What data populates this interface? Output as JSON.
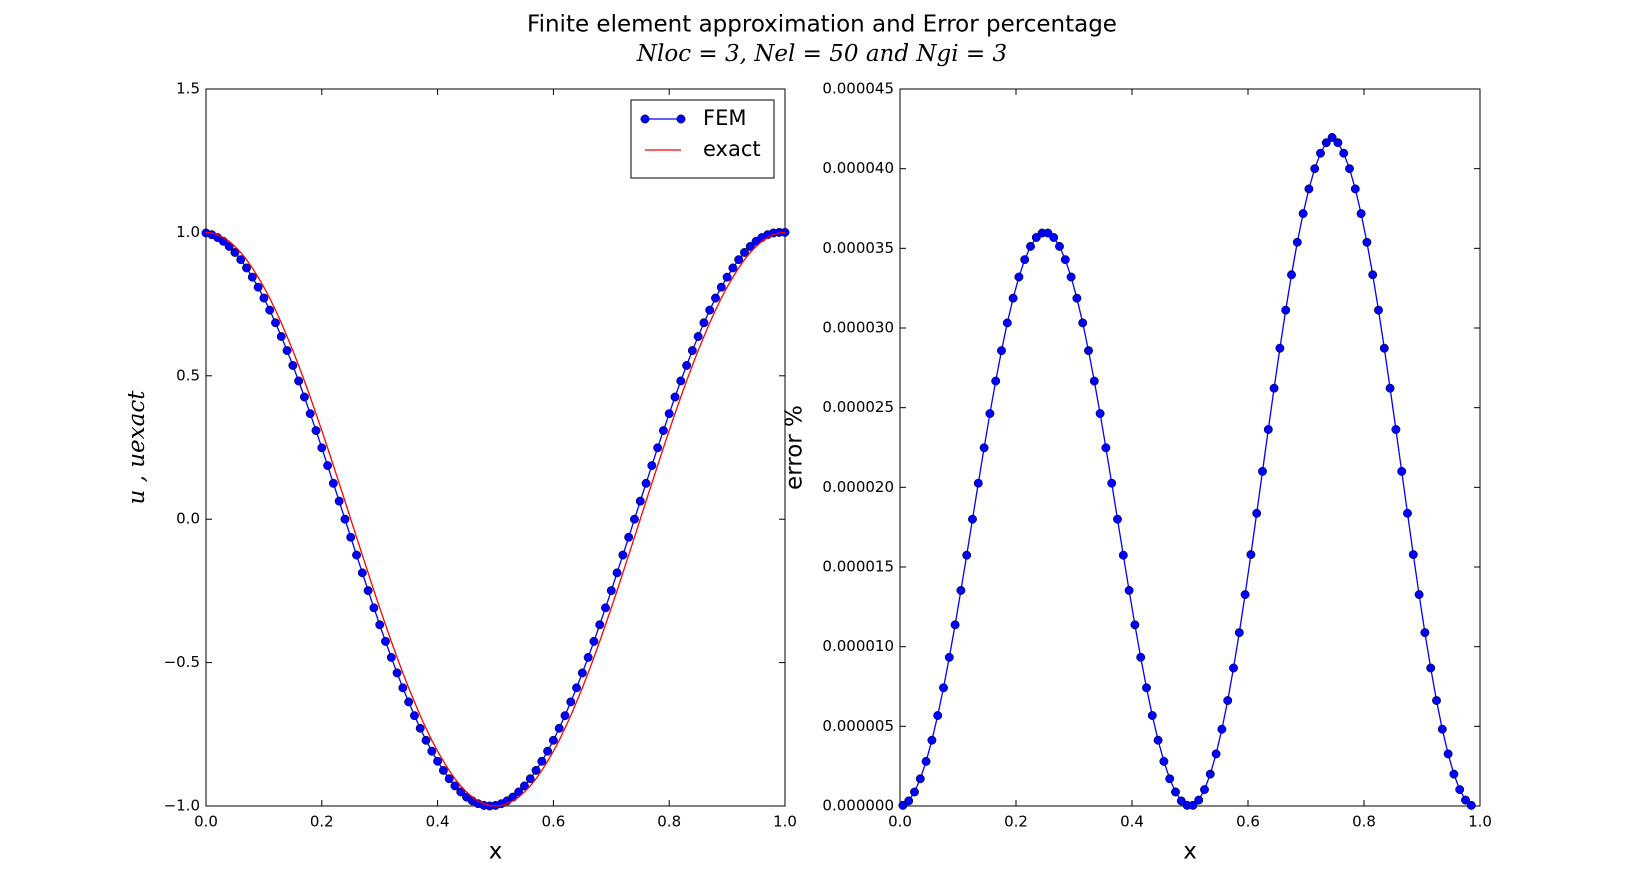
{
  "title": "Finite element approximation and Error percentage",
  "subtitle": "Nloc = 3,  Nel = 50  and Ngi = 3",
  "chart_data": [
    {
      "type": "line",
      "xlabel": "x",
      "ylabel": "u , uexact",
      "legend": "upper right",
      "xlim": [
        0,
        1
      ],
      "ylim": [
        -1,
        1.5
      ],
      "xticks": [
        {
          "value": 0,
          "label": "0.0"
        },
        {
          "value": 0.2,
          "label": "0.2"
        },
        {
          "value": 0.4,
          "label": "0.4"
        },
        {
          "value": 0.6,
          "label": "0.6"
        },
        {
          "value": 0.8,
          "label": "0.8"
        },
        {
          "value": 1,
          "label": "1.0"
        }
      ],
      "yticks": [
        {
          "value": -1,
          "label": "−1.0"
        },
        {
          "value": -0.5,
          "label": "−0.5"
        },
        {
          "value": 0,
          "label": "0.0"
        },
        {
          "value": 0.5,
          "label": "0.5"
        },
        {
          "value": 1,
          "label": "1.0"
        },
        {
          "value": 1.5,
          "label": "1.5"
        }
      ],
      "x": [
        0,
        0.01,
        0.02,
        0.03,
        0.04,
        0.05,
        0.06,
        0.07,
        0.08,
        0.09,
        0.1,
        0.11,
        0.12,
        0.13,
        0.14,
        0.15,
        0.16,
        0.17,
        0.18,
        0.19,
        0.2,
        0.21,
        0.22,
        0.23,
        0.24,
        0.25,
        0.26,
        0.27,
        0.28,
        0.29,
        0.3,
        0.31,
        0.32,
        0.33,
        0.34,
        0.35,
        0.36,
        0.37,
        0.38,
        0.39,
        0.4,
        0.41,
        0.42,
        0.43,
        0.44,
        0.45,
        0.46,
        0.47,
        0.48,
        0.49,
        0.5,
        0.51,
        0.52,
        0.53,
        0.54,
        0.55,
        0.56,
        0.57,
        0.58,
        0.59,
        0.6,
        0.61,
        0.62,
        0.63,
        0.64,
        0.65,
        0.66,
        0.67,
        0.68,
        0.69,
        0.7,
        0.71,
        0.72,
        0.73,
        0.74,
        0.75,
        0.76,
        0.77,
        0.78,
        0.79,
        0.8,
        0.81,
        0.82,
        0.83,
        0.84,
        0.85,
        0.86,
        0.87,
        0.88,
        0.89,
        0.9,
        0.91,
        0.92,
        0.93,
        0.94,
        0.95,
        0.96,
        0.97,
        0.98,
        0.99,
        1
      ],
      "series": [
        {
          "name": "FEM",
          "color": "#0000ff",
          "marker": true,
          "values": [
            0.998,
            0.992,
            0.982,
            0.969,
            0.951,
            0.93,
            0.905,
            0.876,
            0.844,
            0.809,
            0.771,
            0.729,
            0.685,
            0.637,
            0.588,
            0.536,
            0.482,
            0.426,
            0.368,
            0.309,
            0.249,
            0.187,
            0.125,
            0.063,
            0,
            -0.063,
            -0.125,
            -0.187,
            -0.249,
            -0.309,
            -0.368,
            -0.426,
            -0.482,
            -0.536,
            -0.588,
            -0.637,
            -0.685,
            -0.729,
            -0.771,
            -0.809,
            -0.844,
            -0.876,
            -0.905,
            -0.93,
            -0.951,
            -0.969,
            -0.982,
            -0.992,
            -0.998,
            -1,
            -0.998,
            -0.992,
            -0.982,
            -0.969,
            -0.951,
            -0.93,
            -0.905,
            -0.876,
            -0.844,
            -0.809,
            -0.771,
            -0.729,
            -0.685,
            -0.637,
            -0.588,
            -0.536,
            -0.482,
            -0.426,
            -0.368,
            -0.309,
            -0.249,
            -0.187,
            -0.125,
            -0.063,
            0,
            0.063,
            0.125,
            0.187,
            0.249,
            0.309,
            0.368,
            0.426,
            0.482,
            0.536,
            0.588,
            0.637,
            0.685,
            0.729,
            0.771,
            0.809,
            0.844,
            0.876,
            0.905,
            0.93,
            0.951,
            0.969,
            0.982,
            0.992,
            0.998,
            1,
            1
          ]
        },
        {
          "name": "exact",
          "color": "#ff0000",
          "marker": false,
          "values": [
            1,
            0.998,
            0.992,
            0.982,
            0.969,
            0.951,
            0.93,
            0.905,
            0.876,
            0.844,
            0.809,
            0.771,
            0.729,
            0.685,
            0.637,
            0.588,
            0.536,
            0.482,
            0.426,
            0.368,
            0.309,
            0.249,
            0.187,
            0.125,
            0.063,
            0,
            -0.063,
            -0.125,
            -0.187,
            -0.249,
            -0.309,
            -0.368,
            -0.426,
            -0.482,
            -0.536,
            -0.588,
            -0.637,
            -0.685,
            -0.729,
            -0.771,
            -0.809,
            -0.844,
            -0.876,
            -0.905,
            -0.93,
            -0.951,
            -0.969,
            -0.982,
            -0.992,
            -0.998,
            -1,
            -0.998,
            -0.992,
            -0.982,
            -0.969,
            -0.951,
            -0.93,
            -0.905,
            -0.876,
            -0.844,
            -0.809,
            -0.771,
            -0.729,
            -0.685,
            -0.637,
            -0.588,
            -0.536,
            -0.482,
            -0.426,
            -0.368,
            -0.309,
            -0.249,
            -0.187,
            -0.125,
            -0.063,
            0,
            0.063,
            0.125,
            0.187,
            0.249,
            0.309,
            0.368,
            0.426,
            0.482,
            0.536,
            0.588,
            0.637,
            0.685,
            0.729,
            0.771,
            0.809,
            0.844,
            0.876,
            0.905,
            0.93,
            0.951,
            0.969,
            0.982,
            0.992,
            0.998,
            1
          ]
        }
      ]
    },
    {
      "type": "line",
      "xlabel": "x",
      "ylabel": "error %",
      "xlim": [
        0,
        1
      ],
      "ylim": [
        0,
        4.5e-05
      ],
      "xticks": [
        {
          "value": 0,
          "label": "0.0"
        },
        {
          "value": 0.2,
          "label": "0.2"
        },
        {
          "value": 0.4,
          "label": "0.4"
        },
        {
          "value": 0.6,
          "label": "0.6"
        },
        {
          "value": 0.8,
          "label": "0.8"
        },
        {
          "value": 1,
          "label": "1.0"
        }
      ],
      "yticks": [
        {
          "value": 0,
          "label": "0.000000"
        },
        {
          "value": 5e-06,
          "label": "0.000005"
        },
        {
          "value": 1e-05,
          "label": "0.000010"
        },
        {
          "value": 1.5e-05,
          "label": "0.000015"
        },
        {
          "value": 2e-05,
          "label": "0.000020"
        },
        {
          "value": 2.5e-05,
          "label": "0.000025"
        },
        {
          "value": 3e-05,
          "label": "0.000030"
        },
        {
          "value": 3.5e-05,
          "label": "0.000035"
        },
        {
          "value": 4e-05,
          "label": "0.000040"
        },
        {
          "value": 4.5e-05,
          "label": "0.000045"
        }
      ],
      "x": [
        0.005,
        0.015,
        0.025,
        0.035,
        0.045,
        0.055,
        0.065,
        0.075,
        0.085,
        0.095,
        0.105,
        0.115,
        0.125,
        0.135,
        0.145,
        0.155,
        0.165,
        0.175,
        0.185,
        0.195,
        0.205,
        0.215,
        0.225,
        0.235,
        0.245,
        0.255,
        0.265,
        0.275,
        0.285,
        0.295,
        0.305,
        0.315,
        0.325,
        0.335,
        0.345,
        0.355,
        0.365,
        0.375,
        0.385,
        0.395,
        0.405,
        0.415,
        0.425,
        0.435,
        0.445,
        0.455,
        0.465,
        0.475,
        0.485,
        0.495,
        0.505,
        0.515,
        0.525,
        0.535,
        0.545,
        0.555,
        0.565,
        0.575,
        0.585,
        0.595,
        0.605,
        0.615,
        0.625,
        0.635,
        0.645,
        0.655,
        0.665,
        0.675,
        0.685,
        0.695,
        0.705,
        0.715,
        0.725,
        0.735,
        0.745,
        0.755,
        0.765,
        0.775,
        0.785,
        0.795,
        0.805,
        0.815,
        0.825,
        0.835,
        0.845,
        0.855,
        0.865,
        0.875,
        0.885,
        0.895,
        0.905,
        0.915,
        0.925,
        0.935,
        0.945,
        0.955,
        0.965,
        0.975,
        0.985
      ],
      "series": [
        {
          "color": "#0000ff",
          "marker": true,
          "values": [
            4e-08,
            3.2e-07,
            8.8e-07,
            1.71e-06,
            2.8e-06,
            4.13e-06,
            5.68e-06,
            7.42e-06,
            9.33e-06,
            1.137e-05,
            1.353e-05,
            1.574e-05,
            1.8e-05,
            2.026e-05,
            2.248e-05,
            2.463e-05,
            2.667e-05,
            2.858e-05,
            3.032e-05,
            3.187e-05,
            3.32e-05,
            3.429e-05,
            3.512e-05,
            3.568e-05,
            3.596e-05,
            3.596e-05,
            3.568e-05,
            3.512e-05,
            3.429e-05,
            3.32e-05,
            3.187e-05,
            3.032e-05,
            2.858e-05,
            2.667e-05,
            2.463e-05,
            2.248e-05,
            2.026e-05,
            1.8e-05,
            1.574e-05,
            1.353e-05,
            1.137e-05,
            9.33e-06,
            7.42e-06,
            5.68e-06,
            4.13e-06,
            2.8e-06,
            1.71e-06,
            8.8e-07,
            3.2e-07,
            4e-08,
            4e-08,
            3.7e-07,
            1.03e-06,
            2e-06,
            3.27e-06,
            4.82e-06,
            6.62e-06,
            8.66e-06,
            1.088e-05,
            1.327e-05,
            1.578e-05,
            1.837e-05,
            2.1e-05,
            2.363e-05,
            2.622e-05,
            2.873e-05,
            3.112e-05,
            3.334e-05,
            3.538e-05,
            3.718e-05,
            3.873e-05,
            4e-05,
            4.097e-05,
            4.163e-05,
            4.196e-05,
            4.163e-05,
            4.097e-05,
            4e-05,
            3.873e-05,
            3.718e-05,
            3.538e-05,
            3.334e-05,
            3.112e-05,
            2.873e-05,
            2.622e-05,
            2.363e-05,
            2.1e-05,
            1.837e-05,
            1.578e-05,
            1.327e-05,
            1.088e-05,
            8.66e-06,
            6.62e-06,
            4.82e-06,
            3.27e-06,
            2e-06,
            1.03e-06,
            3.7e-07,
            4e-08
          ]
        }
      ]
    }
  ]
}
